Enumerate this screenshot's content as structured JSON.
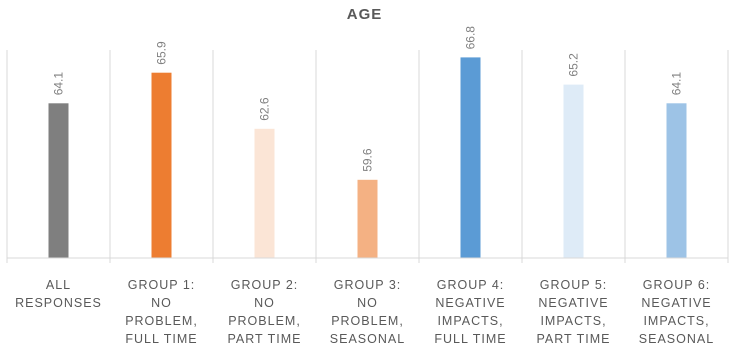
{
  "chart_data": {
    "type": "bar",
    "title": "AGE",
    "categories": [
      "ALL\nRESPONSES",
      "GROUP 1:\nNO\nPROBLEM,\nFULL TIME",
      "GROUP 2:\nNO\nPROBLEM,\nPART TIME",
      "GROUP 3:\nNO\nPROBLEM,\nSEASONAL",
      "GROUP 4:\nNEGATIVE\nIMPACTS,\nFULL TIME",
      "GROUP 5:\nNEGATIVE\nIMPACTS,\nPART TIME",
      "GROUP 6:\nNEGATIVE\nIMPACTS,\nSEASONAL"
    ],
    "values": [
      64.1,
      65.9,
      62.6,
      59.6,
      66.8,
      65.2,
      64.1
    ],
    "value_labels": [
      "64.1",
      "65.9",
      "62.6",
      "59.6",
      "66.8",
      "65.2",
      "64.1"
    ],
    "colors": [
      "#7f7f7f",
      "#ed7d31",
      "#fbe5d6",
      "#f4b183",
      "#5b9bd5",
      "#deebf7",
      "#9dc3e6"
    ],
    "xlabel": "",
    "ylabel": "",
    "ylim": [
      55,
      68
    ],
    "grid": false,
    "legend": "none"
  }
}
